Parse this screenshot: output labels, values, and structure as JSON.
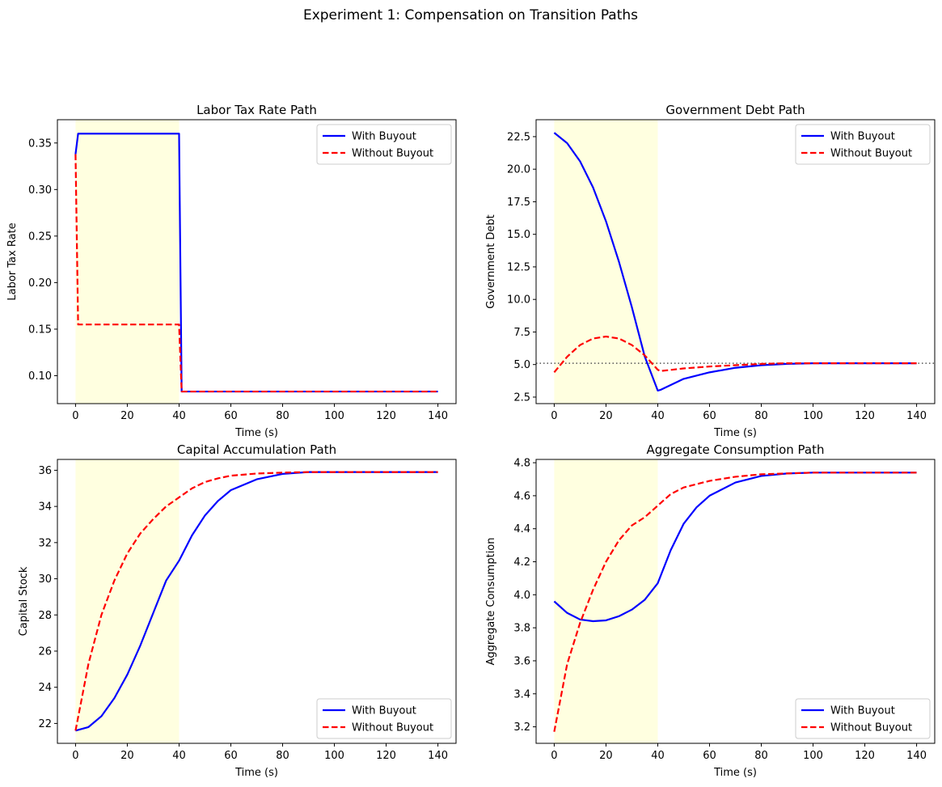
{
  "figure": {
    "title": "Experiment 1: Compensation on Transition Paths"
  },
  "colors": {
    "with_buyout": "#0000ff",
    "without_buyout": "#ff0000",
    "shade": "#ffffe0",
    "reference_line": "#555555"
  },
  "chart_data": [
    {
      "type": "line",
      "title": "Labor Tax Rate Path",
      "xlabel": "Time (s)",
      "ylabel": "Labor Tax Rate",
      "xlim": [
        -7,
        147
      ],
      "ylim": [
        0.07,
        0.375
      ],
      "xticks": [
        0,
        20,
        40,
        60,
        80,
        100,
        120,
        140
      ],
      "yticks": [
        0.1,
        0.15,
        0.2,
        0.25,
        0.3,
        0.35
      ],
      "ytick_decimals": 2,
      "shaded_x": [
        0,
        40
      ],
      "legend_position": "top-right",
      "series": [
        {
          "name": "With Buyout",
          "style": "solid",
          "x": [
            0,
            1,
            40,
            41,
            140
          ],
          "y": [
            0.338,
            0.36,
            0.36,
            0.083,
            0.083
          ]
        },
        {
          "name": "Without Buyout",
          "style": "dashed",
          "x": [
            0,
            1,
            40,
            41,
            140
          ],
          "y": [
            0.338,
            0.155,
            0.155,
            0.083,
            0.083
          ]
        }
      ]
    },
    {
      "type": "line",
      "title": "Government Debt Path",
      "xlabel": "Time (s)",
      "ylabel": "Government Debt",
      "xlim": [
        -7,
        147
      ],
      "ylim": [
        2.0,
        23.8
      ],
      "xticks": [
        0,
        20,
        40,
        60,
        80,
        100,
        120,
        140
      ],
      "yticks": [
        2.5,
        5.0,
        7.5,
        10.0,
        12.5,
        15.0,
        17.5,
        20.0,
        22.5
      ],
      "ytick_decimals": 1,
      "shaded_x": [
        0,
        40
      ],
      "reference_y": 5.1,
      "legend_position": "top-right",
      "series": [
        {
          "name": "With Buyout",
          "style": "solid",
          "x": [
            0,
            5,
            10,
            15,
            20,
            25,
            30,
            35,
            40,
            41,
            50,
            60,
            70,
            80,
            90,
            100,
            110,
            120,
            130,
            140
          ],
          "y": [
            22.8,
            22.0,
            20.6,
            18.6,
            16.0,
            12.9,
            9.4,
            5.6,
            3.0,
            3.05,
            3.9,
            4.4,
            4.75,
            4.95,
            5.05,
            5.1,
            5.1,
            5.1,
            5.1,
            5.1
          ]
        },
        {
          "name": "Without Buyout",
          "style": "dashed",
          "x": [
            0,
            5,
            10,
            15,
            20,
            25,
            30,
            35,
            40,
            41,
            50,
            60,
            70,
            80,
            90,
            100,
            110,
            120,
            130,
            140
          ],
          "y": [
            4.4,
            5.6,
            6.5,
            7.0,
            7.15,
            7.0,
            6.5,
            5.7,
            4.6,
            4.5,
            4.7,
            4.85,
            4.95,
            5.05,
            5.1,
            5.1,
            5.1,
            5.1,
            5.1,
            5.1
          ]
        }
      ]
    },
    {
      "type": "line",
      "title": "Capital Accumulation Path",
      "xlabel": "Time (s)",
      "ylabel": "Capital Stock",
      "xlim": [
        -7,
        147
      ],
      "ylim": [
        20.9,
        36.6
      ],
      "xticks": [
        0,
        20,
        40,
        60,
        80,
        100,
        120,
        140
      ],
      "yticks": [
        22,
        24,
        26,
        28,
        30,
        32,
        34,
        36
      ],
      "ytick_decimals": 0,
      "shaded_x": [
        0,
        40
      ],
      "legend_position": "bottom-right",
      "series": [
        {
          "name": "With Buyout",
          "style": "solid",
          "x": [
            0,
            5,
            10,
            15,
            20,
            25,
            30,
            35,
            40,
            45,
            50,
            55,
            60,
            70,
            80,
            90,
            100,
            110,
            120,
            130,
            140
          ],
          "y": [
            21.6,
            21.8,
            22.4,
            23.4,
            24.7,
            26.3,
            28.1,
            29.9,
            31.0,
            32.4,
            33.5,
            34.3,
            34.9,
            35.5,
            35.8,
            35.9,
            35.9,
            35.9,
            35.9,
            35.9,
            35.9
          ]
        },
        {
          "name": "Without Buyout",
          "style": "dashed",
          "x": [
            0,
            5,
            10,
            15,
            20,
            25,
            30,
            35,
            40,
            45,
            50,
            55,
            60,
            70,
            80,
            90,
            100,
            110,
            120,
            130,
            140
          ],
          "y": [
            21.6,
            25.3,
            28.0,
            29.9,
            31.4,
            32.5,
            33.3,
            34.0,
            34.5,
            35.0,
            35.35,
            35.55,
            35.7,
            35.82,
            35.87,
            35.9,
            35.9,
            35.9,
            35.9,
            35.9,
            35.9
          ]
        }
      ]
    },
    {
      "type": "line",
      "title": "Aggregate Consumption Path",
      "xlabel": "Time (s)",
      "ylabel": "Aggregate Consumption",
      "xlim": [
        -7,
        147
      ],
      "ylim": [
        3.1,
        4.82
      ],
      "xticks": [
        0,
        20,
        40,
        60,
        80,
        100,
        120,
        140
      ],
      "yticks": [
        3.2,
        3.4,
        3.6,
        3.8,
        4.0,
        4.2,
        4.4,
        4.6,
        4.8
      ],
      "ytick_decimals": 1,
      "shaded_x": [
        0,
        40
      ],
      "legend_position": "bottom-right",
      "series": [
        {
          "name": "With Buyout",
          "style": "solid",
          "x": [
            0,
            5,
            10,
            15,
            20,
            25,
            30,
            35,
            40,
            45,
            50,
            55,
            60,
            70,
            80,
            90,
            100,
            110,
            120,
            130,
            140
          ],
          "y": [
            3.96,
            3.89,
            3.85,
            3.84,
            3.845,
            3.87,
            3.91,
            3.97,
            4.07,
            4.27,
            4.43,
            4.53,
            4.6,
            4.68,
            4.72,
            4.735,
            4.74,
            4.74,
            4.74,
            4.74,
            4.74
          ]
        },
        {
          "name": "Without Buyout",
          "style": "dashed",
          "x": [
            0,
            5,
            10,
            15,
            20,
            25,
            30,
            35,
            40,
            45,
            50,
            55,
            60,
            70,
            80,
            90,
            100,
            110,
            120,
            130,
            140
          ],
          "y": [
            3.17,
            3.58,
            3.83,
            4.03,
            4.2,
            4.33,
            4.42,
            4.47,
            4.54,
            4.61,
            4.65,
            4.67,
            4.69,
            4.715,
            4.73,
            4.735,
            4.74,
            4.74,
            4.74,
            4.74,
            4.74
          ]
        }
      ]
    }
  ]
}
